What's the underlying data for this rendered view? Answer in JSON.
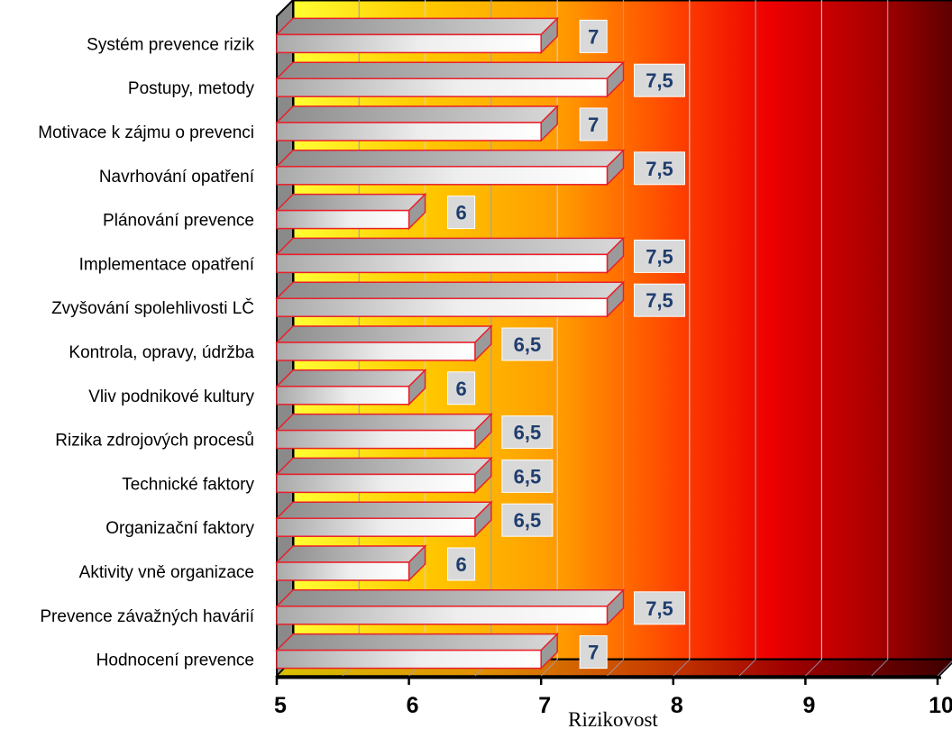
{
  "chart_data": {
    "type": "bar",
    "orientation": "horizontal",
    "style": "3d",
    "categories": [
      "Systém prevence rizik",
      "Postupy, metody",
      "Motivace k zájmu o prevenci",
      "Navrhování opatření",
      "Plánování prevence",
      "Implementace opatření ",
      "Zvyšování spolehlivosti LČ",
      "Kontrola, opravy, údržba ",
      "Vliv podnikové kultury",
      "Rizika zdrojových procesů",
      "Technické faktory ",
      "Organizační faktory",
      "Aktivity vně organizace",
      "Prevence závažných havárií",
      "Hodnocení prevence"
    ],
    "values": [
      7,
      7.5,
      7,
      7.5,
      6,
      7.5,
      7.5,
      6.5,
      6,
      6.5,
      6.5,
      6.5,
      6,
      7.5,
      7
    ],
    "data_labels": [
      "7",
      "7,5",
      "7",
      "7,5",
      "6",
      "7,5",
      "7,5",
      "6,5",
      "6",
      "6,5",
      "6,5",
      "6,5",
      "6",
      "7,5",
      "7"
    ],
    "xlabel": "Rizikovost",
    "xlim": [
      5,
      10
    ],
    "xticks": [
      5,
      6,
      7,
      8,
      9,
      10
    ],
    "xtick_labels": [
      "5",
      "6",
      "7",
      "8",
      "9",
      "10"
    ],
    "grid": true,
    "legend": "none",
    "colors": {
      "bar_fill_light": "#ffffff",
      "bar_fill_dark": "#a9a9a9",
      "bar_outline": "#e8202a",
      "label_box": "#d9d9d9",
      "label_text": "#1f3d6e",
      "background_stops": [
        "#ffff33",
        "#ffcc00",
        "#ff9900",
        "#ff4a00",
        "#ee0000",
        "#a80000",
        "#4a0000"
      ],
      "back_wall": "#000000",
      "left_wall": "#8a8a8a"
    }
  }
}
